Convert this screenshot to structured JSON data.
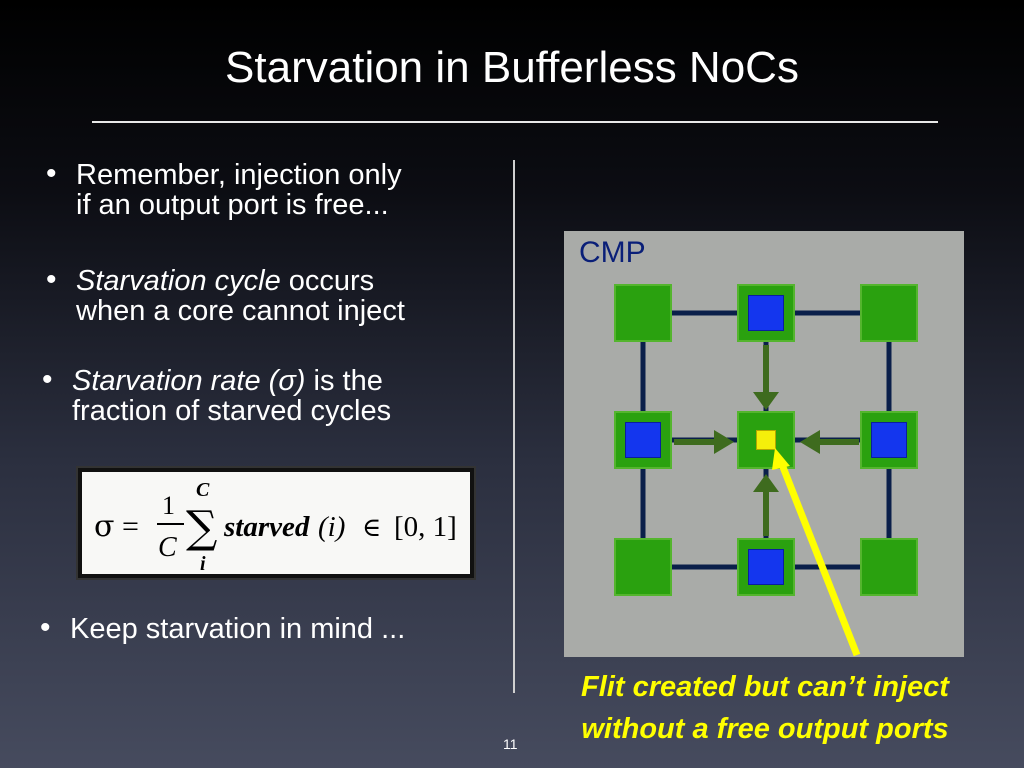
{
  "slide": {
    "title": "Starvation in Bufferless NoCs",
    "bullets": [
      {
        "line1": "Remember, injection only",
        "line2": "if an output port is free..."
      },
      {
        "italic": "Starvation cycle",
        "line1_rest": " occurs",
        "line2": "when a core cannot inject"
      },
      {
        "italic": "Starvation rate (σ)",
        "line1_rest": " is the",
        "line2": "fraction of starved cycles"
      },
      {
        "line1": "Keep starvation in mind ..."
      }
    ],
    "formula": {
      "sigma": "σ",
      "equals": "=",
      "num": "1",
      "den": "C",
      "sum_upper": "C",
      "sum_sym": "∑",
      "sum_lower": "i",
      "func": "starved",
      "arg": "(i)",
      "in": "∈",
      "range": "[0, 1]"
    },
    "diagram": {
      "label": "CMP"
    },
    "caption_line1": "Flit created but can’t inject",
    "caption_line2": "without a free output ports",
    "page_number": "11"
  },
  "colors": {
    "node_green": "#2aa10f",
    "core_blue": "#1436ee",
    "flit_yellow": "#f5ef0b",
    "link_navy": "#0a1f4a",
    "arrow_green": "#3e6b1e",
    "pointer_yellow": "#ffff00",
    "caption_yellow": "#ffff00",
    "cmp_gray": "#a9aba8"
  }
}
